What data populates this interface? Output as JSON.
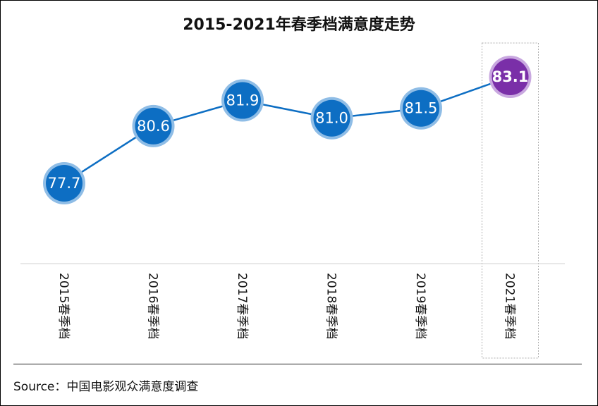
{
  "chart_data": {
    "type": "line",
    "title": "2015-2021年春季档满意度走势",
    "categories": [
      "2015春季档",
      "2016春季档",
      "2017春季档",
      "2018春季档",
      "2019春季档",
      "2021春季档"
    ],
    "values": [
      77.7,
      80.6,
      81.9,
      81.0,
      81.5,
      83.1
    ],
    "value_labels": [
      "77.7",
      "80.6",
      "81.9",
      "81.0",
      "81.5",
      "83.1"
    ],
    "highlight_index": 5,
    "colors": {
      "series": "#0d6ec3",
      "marker": "#0d6ec3",
      "marker_ring": "#8fbde6",
      "highlight": "#7a2fa8",
      "highlight_ring": "#c9a8e0"
    },
    "legend": "none",
    "grid": false
  },
  "source": "Source：中国电影观众满意度调查"
}
